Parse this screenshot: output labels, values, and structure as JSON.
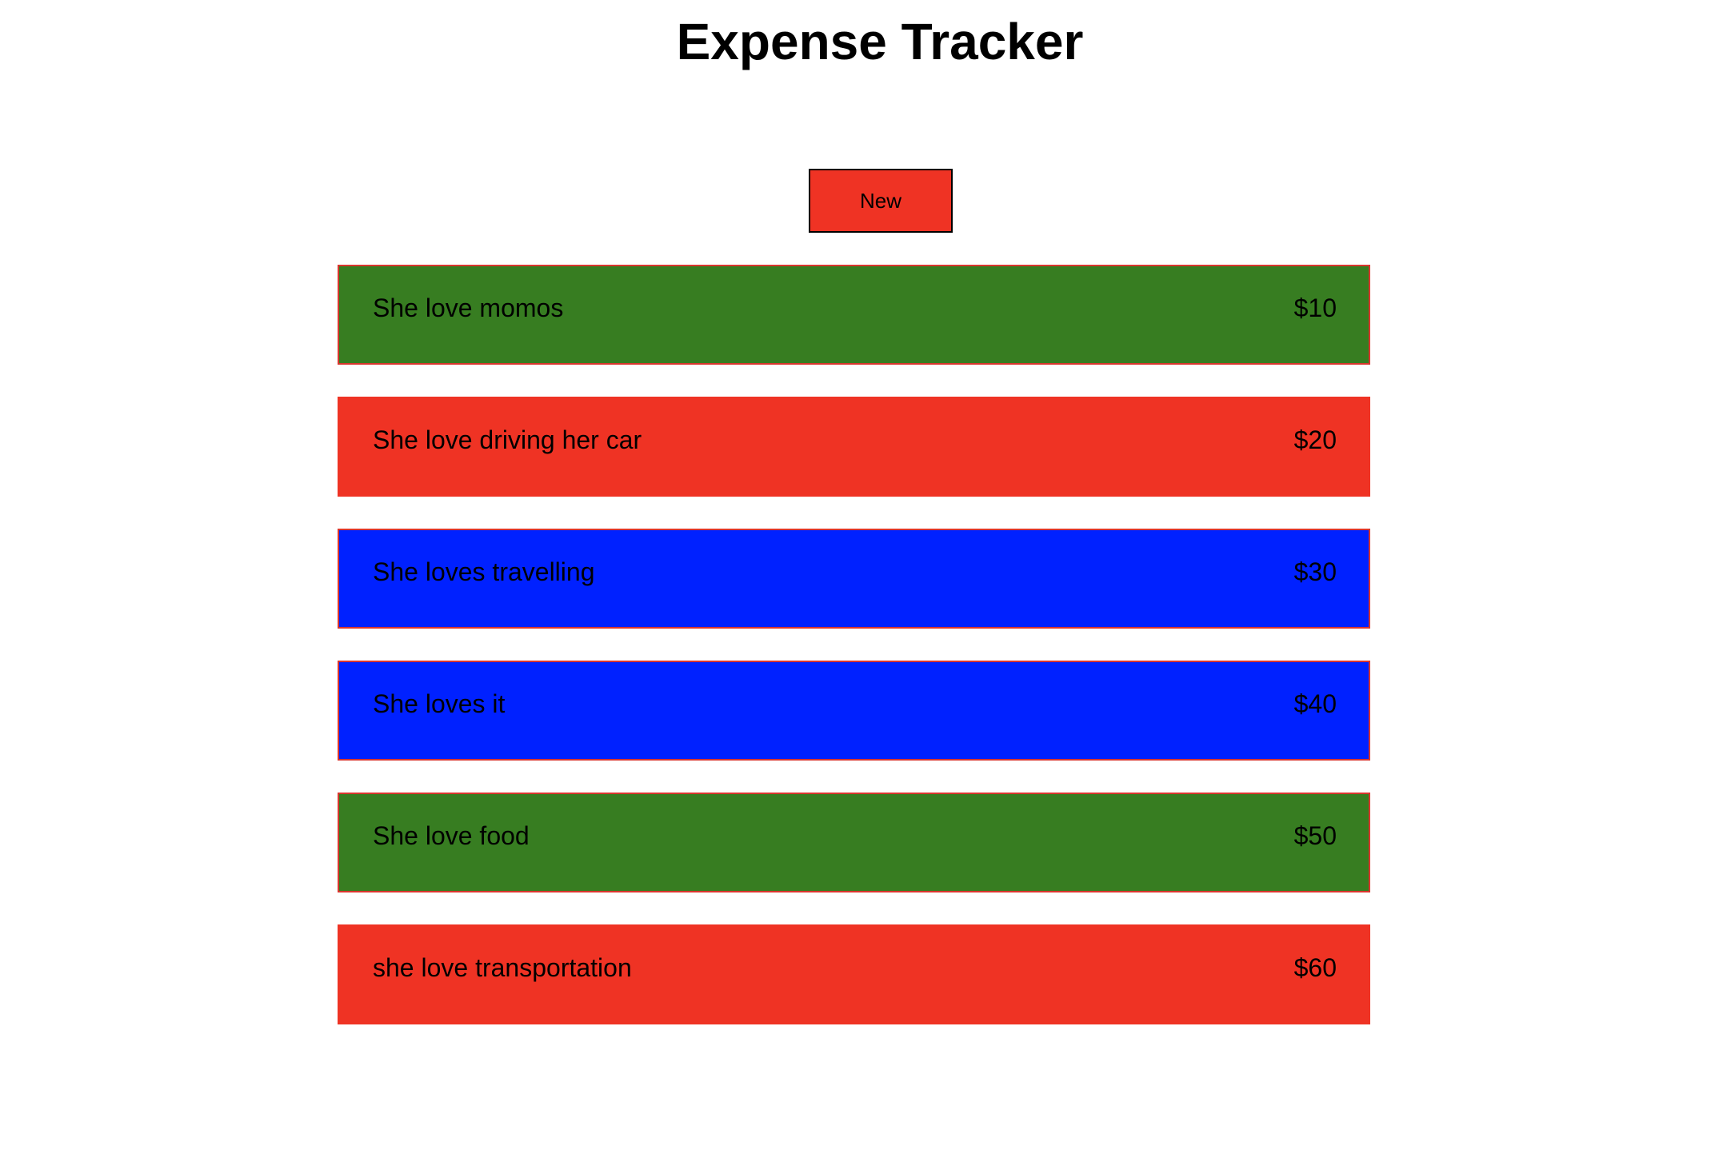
{
  "header": {
    "title": "Expense Tracker"
  },
  "toolbar": {
    "new_label": "New",
    "new_color": "#ef3324"
  },
  "colors": {
    "green": "#377d21",
    "red": "#ef3324",
    "blue": "#0021ff",
    "border": "#d9362e"
  },
  "expenses": [
    {
      "title": "She love momos",
      "amount": "$10",
      "color": "#377d21"
    },
    {
      "title": "She love driving her car",
      "amount": "$20",
      "color": "#ef3324"
    },
    {
      "title": "She loves travelling",
      "amount": "$30",
      "color": "#0021ff"
    },
    {
      "title": "She loves it",
      "amount": "$40",
      "color": "#0021ff"
    },
    {
      "title": "She love food",
      "amount": "$50",
      "color": "#377d21"
    },
    {
      "title": "she love transportation",
      "amount": "$60",
      "color": "#ef3324"
    }
  ]
}
